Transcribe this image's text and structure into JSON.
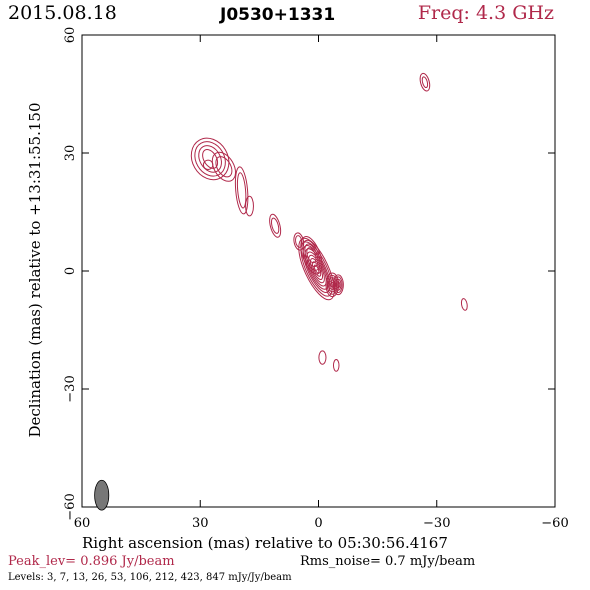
{
  "header": {
    "date": "2015.08.18",
    "source": "J0530+1331",
    "freq": "Freq: 4.3 GHz"
  },
  "footer": {
    "peak": "Peak_lev=  0.896 Jy/beam",
    "rms": "Rms_noise=  0.7 mJy/beam",
    "levels": "Levels:   3,    7,   13,   26,   53,  106,  212,  423,  847 mJy/Jy/beam"
  },
  "colors": {
    "contour": "#b0284a",
    "beam": "#777777"
  },
  "chart_data": {
    "type": "contour",
    "title": "J0530+1331",
    "xlabel": "Right ascension (mas) relative to 05:30:56.4167",
    "ylabel": "Declination (mas) relative to +13:31:55.150",
    "xlim": [
      60,
      -60
    ],
    "ylim": [
      -60,
      60
    ],
    "xticks": [
      60,
      30,
      0,
      -30,
      -60
    ],
    "yticks": [
      -60,
      -30,
      0,
      30,
      60
    ],
    "xtick_labels": [
      "60",
      "30",
      "0",
      "−30",
      "−60"
    ],
    "ytick_labels": [
      "−60",
      "−30",
      "0",
      "30",
      "60"
    ],
    "contour_levels_mJy": [
      3,
      7,
      13,
      26,
      53,
      106,
      212,
      423,
      847
    ],
    "components": [
      {
        "x": 0.5,
        "y": 0.5,
        "rx": [
          3.0,
          2.6,
          2.2,
          1.9,
          1.6,
          1.3,
          1.0,
          0.7,
          0.4
        ],
        "ry": [
          8.5,
          7.5,
          6.5,
          5.6,
          4.7,
          3.8,
          2.9,
          2.0,
          1.1
        ],
        "rot": -25
      },
      {
        "x": 1.8,
        "y": 4.0,
        "rx": [
          2.2,
          1.8,
          1.4,
          1.0
        ],
        "ry": [
          5.0,
          4.0,
          3.0,
          2.0
        ],
        "rot": -20
      },
      {
        "x": -3.5,
        "y": -3.5,
        "rx": [
          1.6,
          1.3,
          1.0,
          0.7,
          0.4
        ],
        "ry": [
          3.0,
          2.4,
          1.8,
          1.2,
          0.6
        ],
        "rot": 0
      },
      {
        "x": -5.0,
        "y": -3.5,
        "rx": [
          1.3,
          1.0,
          0.7,
          0.4
        ],
        "ry": [
          2.5,
          2.0,
          1.4,
          0.8
        ],
        "rot": 0
      },
      {
        "x": 5.0,
        "y": 7.5,
        "rx": [
          1.2,
          0.8
        ],
        "ry": [
          2.2,
          1.5
        ],
        "rot": -10
      },
      {
        "x": 11.0,
        "y": 11.5,
        "rx": [
          1.2,
          0.8
        ],
        "ry": [
          3.0,
          2.0
        ],
        "rot": -15
      },
      {
        "x": 19.5,
        "y": 20.5,
        "rx": [
          1.5,
          1.0
        ],
        "ry": [
          6.0,
          4.5
        ],
        "rot": -5
      },
      {
        "x": 17.5,
        "y": 16.5,
        "rx": [
          1.0
        ],
        "ry": [
          2.5
        ],
        "rot": 0
      },
      {
        "x": 27.5,
        "y": 28.5,
        "rx": [
          4.5,
          3.6,
          2.6,
          1.6
        ],
        "ry": [
          5.5,
          4.6,
          3.6,
          2.6
        ],
        "rot": -30
      },
      {
        "x": 24.0,
        "y": 26.5,
        "rx": [
          2.5,
          1.7
        ],
        "ry": [
          4.0,
          2.8
        ],
        "rot": -30
      },
      {
        "x": 28.0,
        "y": 27.0,
        "rx": [
          1.2
        ],
        "ry": [
          1.2
        ],
        "rot": 0
      },
      {
        "x": -27.0,
        "y": 48.0,
        "rx": [
          1.1,
          0.6
        ],
        "ry": [
          2.3,
          1.4
        ],
        "rot": -15
      },
      {
        "x": -37.0,
        "y": -8.5,
        "rx": [
          0.7
        ],
        "ry": [
          1.5
        ],
        "rot": -10
      },
      {
        "x": -1.0,
        "y": -22.0,
        "rx": [
          0.9
        ],
        "ry": [
          1.7
        ],
        "rot": 0
      },
      {
        "x": -4.5,
        "y": -24.0,
        "rx": [
          0.7
        ],
        "ry": [
          1.5
        ],
        "rot": 0
      }
    ],
    "beam": {
      "x": 55.0,
      "y": -57.0,
      "bmaj": 3.8,
      "bmin": 1.8,
      "pa": 0
    },
    "grid": false
  }
}
